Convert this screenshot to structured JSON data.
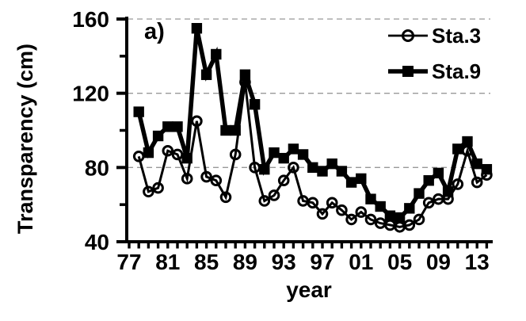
{
  "figure": {
    "panel_label": "a)",
    "background": "#ffffff",
    "axis_color": "#000000",
    "gridline_color": "#999999",
    "series_color": "#000000"
  },
  "legend": {
    "position": "top-right-inside",
    "items": [
      {
        "label": "Sta.3",
        "marker": "open-circle"
      },
      {
        "label": "Sta.9",
        "marker": "filled-square"
      }
    ]
  },
  "chart_data": {
    "type": "line",
    "title": "a)",
    "xlabel": "year",
    "ylabel": "Transparency (cm)",
    "ylim": [
      40,
      160
    ],
    "y_major_ticks": [
      40,
      80,
      120,
      160
    ],
    "y_minor_ticks": [
      60,
      100,
      140
    ],
    "gridlines_at": [
      80,
      120,
      160
    ],
    "grid_style": "horizontal-dashed",
    "legend_position": "top-right inside plot",
    "x_range_years": [
      1977,
      2014
    ],
    "x_tick_interval_years": 1,
    "x_labeled_ticks": [
      {
        "year": 1977,
        "label": "77"
      },
      {
        "year": 1981,
        "label": "81"
      },
      {
        "year": 1985,
        "label": "85"
      },
      {
        "year": 1989,
        "label": "89"
      },
      {
        "year": 1993,
        "label": "93"
      },
      {
        "year": 1997,
        "label": "97"
      },
      {
        "year": 2001,
        "label": "01"
      },
      {
        "year": 2005,
        "label": "05"
      },
      {
        "year": 2009,
        "label": "09"
      },
      {
        "year": 2013,
        "label": "13"
      }
    ],
    "x": [
      1978,
      1979,
      1980,
      1981,
      1982,
      1983,
      1984,
      1985,
      1986,
      1987,
      1988,
      1989,
      1990,
      1991,
      1992,
      1993,
      1994,
      1995,
      1996,
      1997,
      1998,
      1999,
      2000,
      2001,
      2002,
      2003,
      2004,
      2005,
      2006,
      2007,
      2008,
      2009,
      2010,
      2011,
      2012,
      2013,
      2014
    ],
    "series": [
      {
        "name": "Sta.3",
        "marker": "open-circle",
        "values": [
          86,
          67,
          69,
          89,
          87,
          74,
          105,
          75,
          73,
          64,
          87,
          126,
          80,
          62,
          65,
          73,
          80,
          62,
          61,
          55,
          61,
          57,
          52,
          56,
          52,
          50,
          49,
          48,
          49,
          52,
          61,
          63,
          63,
          71,
          89,
          72,
          76
        ]
      },
      {
        "name": "Sta.9",
        "marker": "filled-square",
        "values": [
          110,
          88,
          97,
          102,
          102,
          85,
          155,
          130,
          141,
          100,
          100,
          130,
          114,
          79,
          88,
          85,
          90,
          87,
          80,
          78,
          82,
          78,
          72,
          74,
          63,
          59,
          54,
          53,
          58,
          66,
          73,
          77,
          67,
          90,
          94,
          82,
          79
        ]
      }
    ]
  }
}
